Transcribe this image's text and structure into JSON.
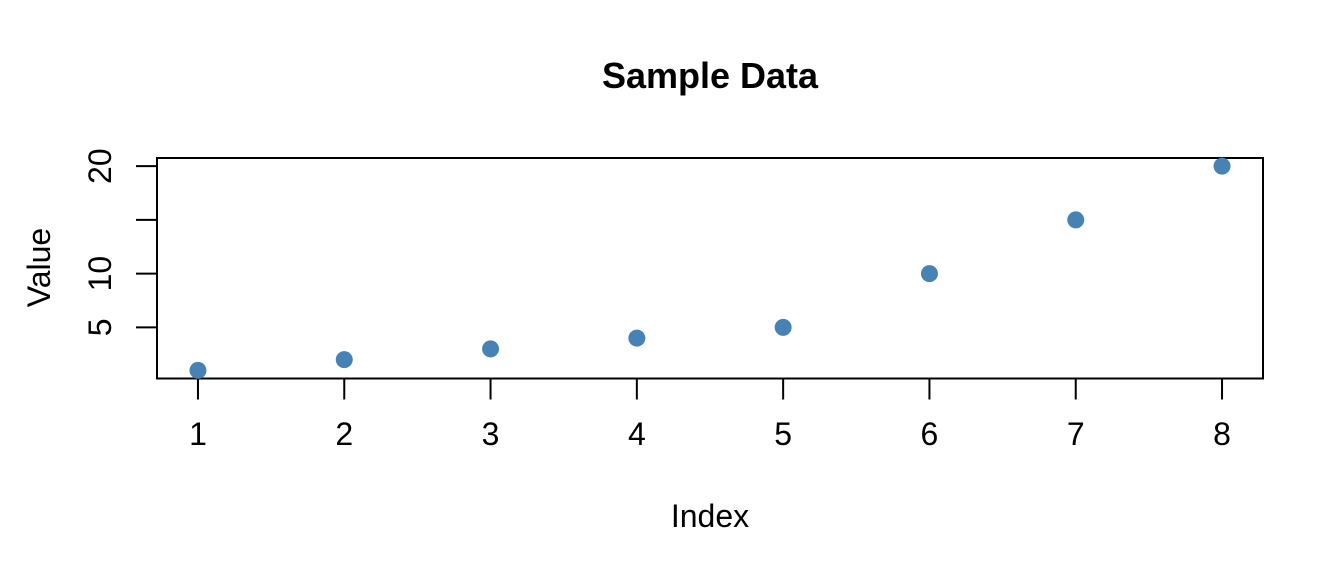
{
  "figure": {
    "background": "#FFFFFF"
  },
  "chart_data": {
    "type": "scatter",
    "title": "Sample Data",
    "xlabel": "Index",
    "ylabel": "Value",
    "x": [
      1,
      2,
      3,
      4,
      5,
      6,
      7,
      8
    ],
    "y": [
      1,
      2,
      3,
      4,
      5,
      10,
      15,
      20
    ],
    "x_ticks": [
      {
        "value": 1,
        "label": "1"
      },
      {
        "value": 2,
        "label": "2"
      },
      {
        "value": 3,
        "label": "3"
      },
      {
        "value": 4,
        "label": "4"
      },
      {
        "value": 5,
        "label": "5"
      },
      {
        "value": 6,
        "label": "6"
      },
      {
        "value": 7,
        "label": "7"
      },
      {
        "value": 8,
        "label": "8"
      }
    ],
    "y_ticks": [
      {
        "value": 5,
        "label": "5"
      },
      {
        "value": 10,
        "label": "10"
      },
      {
        "value": 15,
        "label": ""
      },
      {
        "value": 20,
        "label": "20"
      }
    ],
    "xlim": [
      0.72,
      8.28
    ],
    "ylim": [
      0.24,
      20.76
    ],
    "grid": false,
    "legend_position": "none",
    "point_style": {
      "shape": "filled-circle",
      "color": "#4682B4",
      "radius": 8.5
    },
    "axis_color": "#000000",
    "text_color": "#000000",
    "plot_background": "#FFFFFF"
  }
}
